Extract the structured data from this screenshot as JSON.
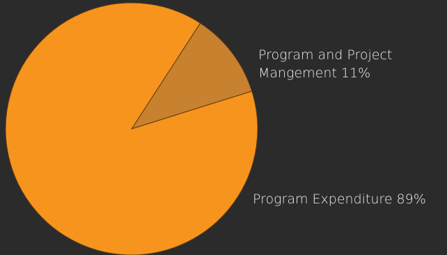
{
  "chart_data": {
    "type": "pie",
    "title": "",
    "slices": [
      {
        "label_lines": [
          "Program and Project",
          "Mangement 11%"
        ],
        "value": 11,
        "color": "#c8812e"
      },
      {
        "label_lines": [
          "Program Expenditure 89%"
        ],
        "value": 89,
        "color": "#f7941d"
      }
    ],
    "start_angle_deg": 33,
    "background": "#2b2b2b",
    "slice_border_color": "#5a3a12"
  }
}
